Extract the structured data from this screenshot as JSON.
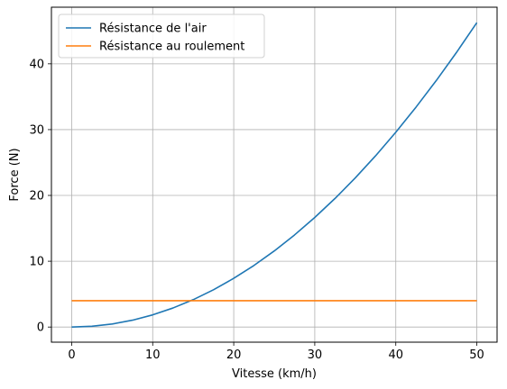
{
  "chart_data": {
    "type": "line",
    "title": "",
    "xlabel": "Vitesse (km/h)",
    "ylabel": "Force (N)",
    "xlim": [
      -2.5,
      52.5
    ],
    "ylim": [
      -2.3,
      48.6
    ],
    "xticks": [
      0,
      10,
      20,
      30,
      40,
      50
    ],
    "yticks": [
      0,
      10,
      20,
      30,
      40
    ],
    "grid": true,
    "legend_position": "top-left",
    "series": [
      {
        "name": "Résistance de l'air",
        "color": "#1f77b4",
        "x": [
          0,
          2.5,
          5,
          7.5,
          10,
          12.5,
          15,
          17.5,
          20,
          22.5,
          25,
          27.5,
          30,
          32.5,
          35,
          37.5,
          40,
          42.5,
          45,
          47.5,
          50
        ],
        "y": [
          0,
          0.12,
          0.46,
          1.04,
          1.85,
          2.89,
          4.16,
          5.66,
          7.4,
          9.36,
          11.56,
          13.99,
          16.65,
          19.54,
          22.66,
          26.01,
          29.6,
          33.42,
          37.46,
          41.74,
          46.25
        ]
      },
      {
        "name": "Résistance au roulement",
        "color": "#ff7f0e",
        "x": [
          0,
          50
        ],
        "y": [
          4.0,
          4.0
        ]
      }
    ]
  }
}
